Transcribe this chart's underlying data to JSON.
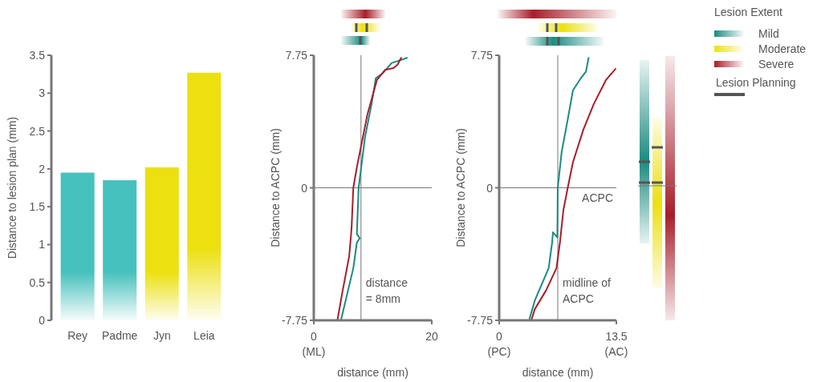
{
  "chart_data": [
    {
      "type": "bar",
      "categories": [
        "Rey",
        "Padme",
        "Jyn",
        "Leia"
      ],
      "values": [
        1.95,
        1.85,
        2.02,
        3.27
      ],
      "colors": [
        "#47c1bd",
        "#47c1bd",
        "#ece010",
        "#ece010"
      ],
      "ylim": [
        0,
        3.5
      ],
      "yticks": [
        0,
        0.5,
        1.0,
        1.5,
        2.0,
        2.5,
        3.0,
        3.5
      ],
      "ylabel": "Distance to lesion plan (mm)",
      "grid": false
    },
    {
      "type": "line",
      "xlabel": "distance (mm)",
      "ylabel": "Distance to ACPC (mm)",
      "xlim": [
        0,
        20
      ],
      "xticks": [
        0,
        20
      ],
      "annotations": [
        "(ML)"
      ],
      "ylim": [
        -7.75,
        7.75
      ],
      "yticks": [
        -7.75,
        0,
        7.75
      ],
      "series": [
        {
          "color": "#1b8b80",
          "x": [
            4.6,
            6.7,
            7.3,
            7.8,
            7.3,
            7.6,
            8.7,
            9.8,
            10.5,
            11.7,
            13.2,
            14.6,
            15.8
          ],
          "values": [
            -7.75,
            -4.7,
            -3.2,
            -2.95,
            -2.7,
            0,
            3.0,
            4.9,
            6.4,
            6.7,
            7.3,
            7.45,
            7.6
          ]
        },
        {
          "color": "#a71e2a",
          "x": [
            4.0,
            4.9,
            6.0,
            6.4,
            6.7,
            7.3,
            8.0,
            9.1,
            10.7,
            12.1,
            13.5,
            14.2,
            14.8
          ],
          "values": [
            -7.75,
            -6.0,
            -4.0,
            -2.4,
            0,
            1.2,
            2.4,
            4.3,
            6.3,
            6.9,
            7.0,
            7.2,
            7.6
          ]
        }
      ],
      "ref_lines": [
        {
          "axis": "x",
          "value": 8,
          "label": "distance\n= 8mm",
          "color": "#777777"
        },
        {
          "axis": "y",
          "value": 0,
          "color": "#777777"
        }
      ],
      "legend": false
    },
    {
      "type": "line",
      "xlabel": "distance (mm)",
      "ylabel": "Distance to ACPC (mm)",
      "xlim": [
        0,
        13.5
      ],
      "xticks": [
        0,
        13.5
      ],
      "ylim": [
        -7.75,
        7.75
      ],
      "yticks": [
        -7.75,
        0,
        7.75
      ],
      "series": [
        {
          "name": "Mild",
          "color": "#1b8b80",
          "x": [
            3.5,
            4.1,
            5.7,
            6.1,
            6.2,
            6.7,
            6.75,
            7.2,
            7.9,
            8.5,
            9.4,
            10.0,
            10.3
          ],
          "values": [
            -7.65,
            -6.6,
            -4.7,
            -3.2,
            -2.6,
            -2.9,
            0,
            2.1,
            4.0,
            5.7,
            6.4,
            6.8,
            7.6
          ]
        },
        {
          "name": "Moderate",
          "color": "#ece010"
        },
        {
          "name": "Severe",
          "color": "#a71e2a",
          "x": [
            3.7,
            4.1,
            5.4,
            6.6,
            7.0,
            7.4,
            7.9,
            8.5,
            9.7,
            10.9,
            12.3,
            13.4
          ],
          "values": [
            -7.75,
            -7.1,
            -6.0,
            -4.7,
            -3.2,
            -1.3,
            0,
            1.5,
            3.4,
            4.9,
            6.3,
            6.95
          ]
        }
      ],
      "ref_lines": [
        {
          "axis": "x",
          "value": 6.75,
          "label": "midline of\nACPC",
          "color": "#777777"
        },
        {
          "axis": "y",
          "value": 0,
          "label": "ACPC",
          "color": "#777777"
        }
      ],
      "legend": "right",
      "legend_title": "Lesion Extent",
      "annotations": [
        "Lesion Planning",
        "(PC)",
        "(AC)"
      ]
    }
  ]
}
